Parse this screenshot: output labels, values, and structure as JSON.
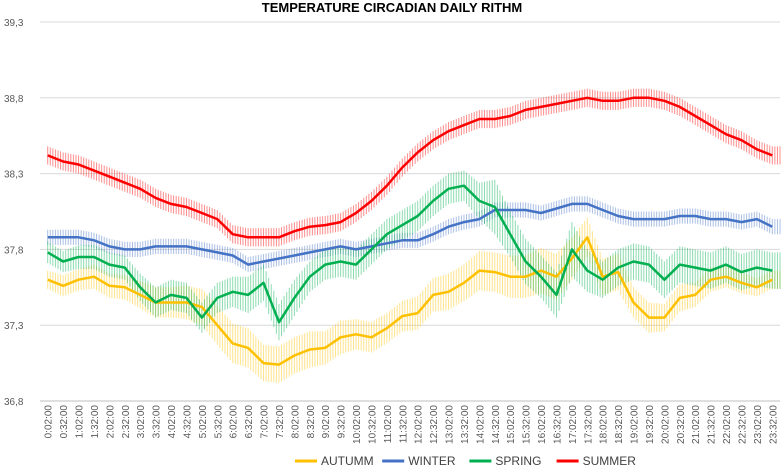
{
  "chart_data": {
    "type": "line",
    "title": "TEMPERATURE CIRCADIAN DAILY RITHM",
    "xlabel": "",
    "ylabel": "",
    "ylim": [
      36.8,
      39.3
    ],
    "y_ticks": [
      "36,8",
      "37,3",
      "37,8",
      "38,3",
      "38,8",
      "39,3"
    ],
    "y_tick_values": [
      36.8,
      37.3,
      37.8,
      38.3,
      38.8,
      39.3
    ],
    "x_ticks": [
      "0:02:00",
      "0:32:00",
      "1:02:00",
      "1:32:00",
      "2:02:00",
      "2:32:00",
      "3:02:00",
      "3:32:00",
      "4:02:00",
      "4:32:00",
      "5:02:00",
      "5:32:00",
      "6:02:00",
      "6:32:00",
      "7:02:00",
      "7:32:00",
      "8:02:00",
      "8:32:00",
      "9:02:00",
      "9:32:00",
      "10:02:00",
      "10:32:00",
      "11:02:00",
      "11:32:00",
      "12:02:00",
      "12:32:00",
      "13:02:00",
      "13:32:00",
      "14:02:00",
      "14:32:00",
      "15:02:00",
      "15:32:00",
      "16:02:00",
      "16:32:00",
      "17:02:00",
      "17:32:00",
      "18:02:00",
      "18:32:00",
      "19:02:00",
      "19:32:00",
      "20:02:00",
      "20:32:00",
      "21:02:00",
      "21:32:00",
      "22:02:00",
      "22:32:00",
      "23:02:00",
      "23:32:00"
    ],
    "grid": true,
    "legend_position": "bottom",
    "has_error_bars": true,
    "series": [
      {
        "name": "AUTUMM",
        "color": "#FFC000",
        "values": [
          37.6,
          37.56,
          37.6,
          37.62,
          37.56,
          37.55,
          37.5,
          37.45,
          37.45,
          37.45,
          37.42,
          37.3,
          37.18,
          37.15,
          37.05,
          37.04,
          37.1,
          37.14,
          37.15,
          37.22,
          37.24,
          37.22,
          37.28,
          37.36,
          37.38,
          37.5,
          37.52,
          37.58,
          37.66,
          37.65,
          37.62,
          37.62,
          37.66,
          37.62,
          37.74,
          37.88,
          37.62,
          37.65,
          37.45,
          37.35,
          37.35,
          37.48,
          37.5,
          37.6,
          37.62,
          37.58,
          37.55,
          37.6
        ],
        "errors": [
          0.06,
          0.07,
          0.07,
          0.08,
          0.08,
          0.08,
          0.09,
          0.1,
          0.1,
          0.11,
          0.12,
          0.13,
          0.13,
          0.13,
          0.12,
          0.12,
          0.12,
          0.12,
          0.11,
          0.11,
          0.1,
          0.1,
          0.1,
          0.1,
          0.11,
          0.11,
          0.12,
          0.12,
          0.13,
          0.13,
          0.14,
          0.14,
          0.15,
          0.15,
          0.14,
          0.13,
          0.12,
          0.12,
          0.1,
          0.1,
          0.09,
          0.09,
          0.08,
          0.08,
          0.07,
          0.07,
          0.06,
          0.06
        ]
      },
      {
        "name": "WINTER",
        "color": "#4472C4",
        "values": [
          37.88,
          37.88,
          37.88,
          37.86,
          37.82,
          37.8,
          37.8,
          37.82,
          37.82,
          37.82,
          37.8,
          37.78,
          37.76,
          37.7,
          37.72,
          37.74,
          37.76,
          37.78,
          37.8,
          37.82,
          37.8,
          37.82,
          37.84,
          37.86,
          37.86,
          37.9,
          37.95,
          37.98,
          38.0,
          38.06,
          38.06,
          38.06,
          38.04,
          38.07,
          38.1,
          38.1,
          38.06,
          38.02,
          38.0,
          38.0,
          38.0,
          38.02,
          38.02,
          38.0,
          38.0,
          37.98,
          38.0,
          37.95
        ],
        "errors": [
          0.05,
          0.05,
          0.05,
          0.05,
          0.05,
          0.05,
          0.05,
          0.05,
          0.05,
          0.05,
          0.05,
          0.05,
          0.05,
          0.05,
          0.05,
          0.05,
          0.05,
          0.05,
          0.05,
          0.05,
          0.05,
          0.05,
          0.05,
          0.05,
          0.05,
          0.05,
          0.05,
          0.05,
          0.05,
          0.05,
          0.05,
          0.05,
          0.05,
          0.05,
          0.05,
          0.05,
          0.05,
          0.05,
          0.05,
          0.05,
          0.05,
          0.05,
          0.05,
          0.05,
          0.05,
          0.05,
          0.05,
          0.05
        ]
      },
      {
        "name": "SPRING",
        "color": "#00B050",
        "values": [
          37.78,
          37.72,
          37.75,
          37.75,
          37.7,
          37.68,
          37.55,
          37.45,
          37.5,
          37.48,
          37.35,
          37.48,
          37.52,
          37.5,
          37.58,
          37.32,
          37.48,
          37.62,
          37.7,
          37.72,
          37.7,
          37.8,
          37.9,
          37.96,
          38.02,
          38.12,
          38.2,
          38.22,
          38.12,
          38.08,
          37.9,
          37.72,
          37.62,
          37.5,
          37.8,
          37.66,
          37.6,
          37.68,
          37.72,
          37.7,
          37.6,
          37.7,
          37.68,
          37.66,
          37.7,
          37.65,
          37.68,
          37.66
        ],
        "errors": [
          0.07,
          0.07,
          0.08,
          0.08,
          0.08,
          0.08,
          0.09,
          0.1,
          0.1,
          0.1,
          0.1,
          0.1,
          0.1,
          0.12,
          0.12,
          0.12,
          0.12,
          0.1,
          0.1,
          0.1,
          0.1,
          0.1,
          0.1,
          0.1,
          0.1,
          0.1,
          0.1,
          0.1,
          0.12,
          0.18,
          0.15,
          0.15,
          0.14,
          0.15,
          0.18,
          0.14,
          0.12,
          0.12,
          0.12,
          0.12,
          0.12,
          0.12,
          0.12,
          0.12,
          0.12,
          0.12,
          0.12,
          0.12
        ]
      },
      {
        "name": "SUMMER",
        "color": "#FF0000",
        "values": [
          38.42,
          38.38,
          38.36,
          38.32,
          38.28,
          38.24,
          38.2,
          38.14,
          38.1,
          38.08,
          38.04,
          38.0,
          37.9,
          37.88,
          37.88,
          37.88,
          37.92,
          37.95,
          37.96,
          37.98,
          38.04,
          38.12,
          38.22,
          38.34,
          38.44,
          38.52,
          38.58,
          38.62,
          38.66,
          38.66,
          38.68,
          38.72,
          38.74,
          38.76,
          38.78,
          38.8,
          38.78,
          38.78,
          38.8,
          38.8,
          38.78,
          38.74,
          38.68,
          38.62,
          38.56,
          38.52,
          38.46,
          38.42
        ],
        "errors": [
          0.06,
          0.06,
          0.06,
          0.06,
          0.06,
          0.06,
          0.06,
          0.06,
          0.06,
          0.06,
          0.06,
          0.06,
          0.06,
          0.06,
          0.06,
          0.06,
          0.06,
          0.06,
          0.06,
          0.06,
          0.06,
          0.06,
          0.06,
          0.06,
          0.06,
          0.06,
          0.06,
          0.06,
          0.06,
          0.06,
          0.06,
          0.06,
          0.06,
          0.06,
          0.06,
          0.06,
          0.06,
          0.06,
          0.06,
          0.06,
          0.06,
          0.06,
          0.06,
          0.06,
          0.06,
          0.06,
          0.06,
          0.06
        ]
      }
    ]
  }
}
